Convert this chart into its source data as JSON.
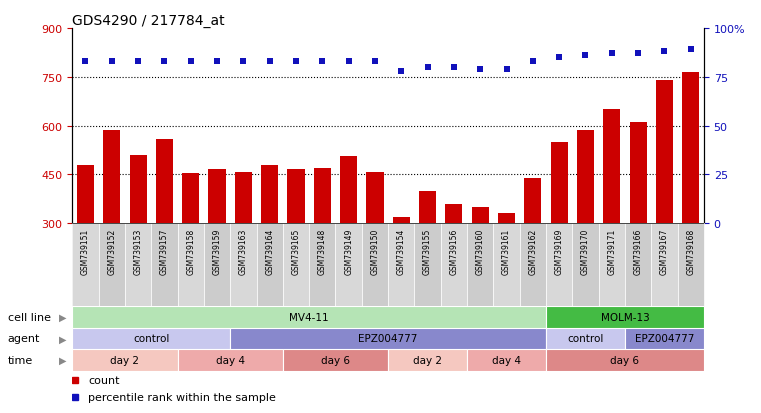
{
  "title": "GDS4290 / 217784_at",
  "samples": [
    "GSM739151",
    "GSM739152",
    "GSM739153",
    "GSM739157",
    "GSM739158",
    "GSM739159",
    "GSM739163",
    "GSM739164",
    "GSM739165",
    "GSM739148",
    "GSM739149",
    "GSM739150",
    "GSM739154",
    "GSM739155",
    "GSM739156",
    "GSM739160",
    "GSM739161",
    "GSM739162",
    "GSM739169",
    "GSM739170",
    "GSM739171",
    "GSM739166",
    "GSM739167",
    "GSM739168"
  ],
  "counts": [
    480,
    585,
    510,
    560,
    455,
    468,
    458,
    480,
    468,
    470,
    505,
    458,
    318,
    400,
    360,
    350,
    330,
    440,
    548,
    585,
    650,
    610,
    740,
    765
  ],
  "percentile_ranks": [
    83,
    83,
    83,
    83,
    83,
    83,
    83,
    83,
    83,
    83,
    83,
    83,
    78,
    80,
    80,
    79,
    79,
    83,
    85,
    86,
    87,
    87,
    88,
    89
  ],
  "bar_color": "#cc0000",
  "dot_color": "#1111bb",
  "ylim_left": [
    300,
    900
  ],
  "yticks_left": [
    300,
    450,
    600,
    750,
    900
  ],
  "yticks_right": [
    0,
    25,
    50,
    75,
    100
  ],
  "grid_values": [
    450,
    600,
    750
  ],
  "cell_line_segments": [
    {
      "label": "MV4-11",
      "start": 0,
      "end": 18,
      "color": "#b5e4b5"
    },
    {
      "label": "MOLM-13",
      "start": 18,
      "end": 24,
      "color": "#44bb44"
    }
  ],
  "agent_segments": [
    {
      "label": "control",
      "start": 0,
      "end": 6,
      "color": "#c8c8ee"
    },
    {
      "label": "EPZ004777",
      "start": 6,
      "end": 18,
      "color": "#8888cc"
    },
    {
      "label": "control",
      "start": 18,
      "end": 21,
      "color": "#c8c8ee"
    },
    {
      "label": "EPZ004777",
      "start": 21,
      "end": 24,
      "color": "#8888cc"
    }
  ],
  "time_segments": [
    {
      "label": "day 2",
      "start": 0,
      "end": 4,
      "color": "#f5c8c0"
    },
    {
      "label": "day 4",
      "start": 4,
      "end": 8,
      "color": "#eeaaaa"
    },
    {
      "label": "day 6",
      "start": 8,
      "end": 12,
      "color": "#dd8888"
    },
    {
      "label": "day 2",
      "start": 12,
      "end": 15,
      "color": "#f5c8c0"
    },
    {
      "label": "day 4",
      "start": 15,
      "end": 18,
      "color": "#eeaaaa"
    },
    {
      "label": "day 6",
      "start": 18,
      "end": 24,
      "color": "#dd8888"
    }
  ],
  "row_labels": [
    "cell line",
    "agent",
    "time"
  ],
  "legend_count_label": "count",
  "legend_pct_label": "percentile rank within the sample"
}
